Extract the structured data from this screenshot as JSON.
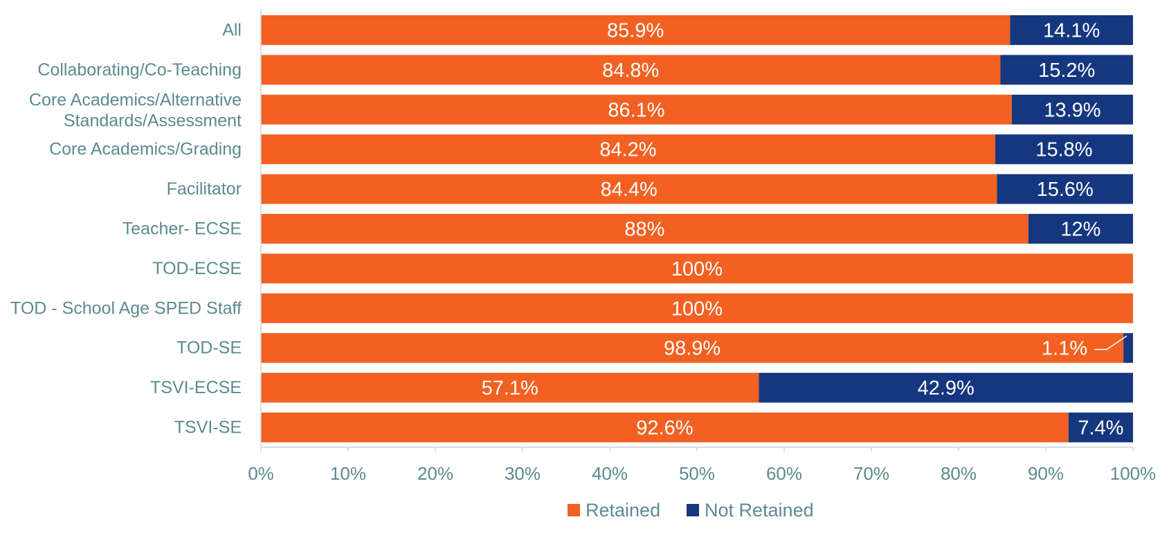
{
  "chart_data": {
    "type": "bar",
    "orientation": "horizontal",
    "stacked": true,
    "categories": [
      "All",
      "Collaborating/Co-Teaching",
      "Core Academics/Alternative Standards/Assessment",
      "Core Academics/Grading",
      "Facilitator",
      "Teacher- ECSE",
      "TOD-ECSE",
      "TOD - School Age SPED Staff",
      "TOD-SE",
      "TSVI-ECSE",
      "TSVI-SE"
    ],
    "category_lines": [
      [
        "All"
      ],
      [
        "Collaborating/Co-Teaching"
      ],
      [
        "Core Academics/Alternative",
        "Standards/Assessment"
      ],
      [
        "Core Academics/Grading"
      ],
      [
        "Facilitator"
      ],
      [
        "Teacher- ECSE"
      ],
      [
        "TOD-ECSE"
      ],
      [
        "TOD - School Age SPED Staff"
      ],
      [
        "TOD-SE"
      ],
      [
        "TSVI-ECSE"
      ],
      [
        "TSVI-SE"
      ]
    ],
    "series": [
      {
        "name": "Retained",
        "color": "#f26122",
        "values": [
          85.9,
          84.8,
          86.1,
          84.2,
          84.4,
          88,
          100,
          100,
          98.9,
          57.1,
          92.6
        ],
        "labels": [
          "85.9%",
          "84.8%",
          "86.1%",
          "84.2%",
          "84.4%",
          "88%",
          "100%",
          "100%",
          "98.9%",
          "57.1%",
          "92.6%"
        ]
      },
      {
        "name": "Not Retained",
        "color": "#15377f",
        "values": [
          14.1,
          15.2,
          13.9,
          15.8,
          15.6,
          12,
          0,
          0,
          1.1,
          42.9,
          7.4
        ],
        "labels": [
          "14.1%",
          "15.2%",
          "13.9%",
          "15.8%",
          "15.6%",
          "12%",
          "",
          "",
          "1.1%",
          "42.9%",
          "7.4%"
        ]
      }
    ],
    "xlim": [
      0,
      100
    ],
    "x_ticks": [
      0,
      10,
      20,
      30,
      40,
      50,
      60,
      70,
      80,
      90,
      100
    ],
    "x_tick_labels": [
      "0%",
      "10%",
      "20%",
      "30%",
      "40%",
      "50%",
      "60%",
      "70%",
      "80%",
      "90%",
      "100%"
    ],
    "legend_position": "bottom",
    "grid": false
  }
}
